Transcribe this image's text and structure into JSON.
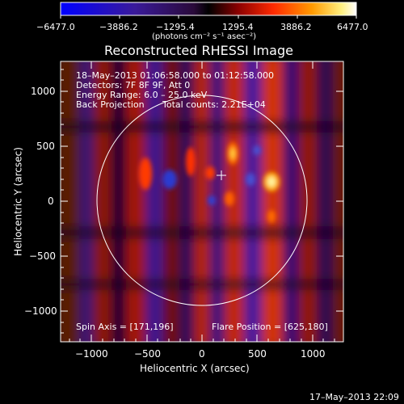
{
  "colorbar": {
    "ticks": [
      "−6477.0",
      "−3886.2",
      "−1295.4",
      "1295.4",
      "3886.2",
      "6477.0"
    ],
    "unit_label": "(photons cm⁻² s⁻¹ asec⁻²)"
  },
  "image": {
    "title": "Reconstructed RHESSI Image",
    "info": {
      "line1": "18–May–2013 01:06:58.000 to 01:12:58.000",
      "line2": "Detectors: 7F 8F 9F, Att 0",
      "line3": "Energy Range: 6.0 – 25.0 keV",
      "line4_method": "Back Projection",
      "line4_counts": "Total counts: 2.21E+04"
    },
    "spin_axis": "Spin Axis = [171,196]",
    "flare_position": "Flare Position = [625,180]",
    "y_axis_label": "Heliocentric Y (arcsec)",
    "x_axis_label": "Heliocentric X (arcsec)",
    "x_ticks": [
      "−1000",
      "−500",
      "0",
      "500",
      "1000"
    ],
    "y_ticks": [
      "1000",
      "500",
      "0",
      "−500",
      "−1000"
    ],
    "colors": {
      "axis": "#ffffff",
      "background": "#000000"
    }
  },
  "footer": {
    "timestamp": "17–May–2013 22:09"
  }
}
